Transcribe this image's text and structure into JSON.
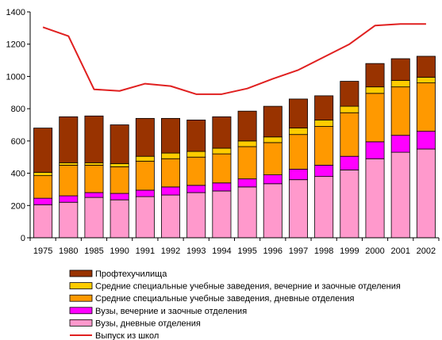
{
  "chart_data": {
    "type": "bar",
    "stacked": true,
    "categories": [
      "1975",
      "1980",
      "1985",
      "1990",
      "1991",
      "1992",
      "1993",
      "1994",
      "1995",
      "1996",
      "1997",
      "1998",
      "1999",
      "2000",
      "2001",
      "2002"
    ],
    "ylim": [
      0,
      1400
    ],
    "yticks": [
      0,
      200,
      400,
      600,
      800,
      1000,
      1200,
      1400
    ],
    "ytick_labels": [
      "0",
      "200",
      "400",
      "600",
      "800",
      "1000",
      "1200",
      "1400"
    ],
    "grid": false,
    "legend_position": "bottom",
    "series": [
      {
        "name": "Вузы, дневные отделения",
        "color": "#ff99cc",
        "values": [
          205,
          220,
          250,
          235,
          255,
          265,
          280,
          290,
          315,
          335,
          360,
          380,
          420,
          490,
          530,
          550
        ]
      },
      {
        "name": "Вузы, вечерние и заочные отделения",
        "color": "#ff00ff",
        "values": [
          40,
          40,
          30,
          40,
          40,
          50,
          45,
          50,
          50,
          55,
          65,
          70,
          85,
          105,
          105,
          110
        ]
      },
      {
        "name": "Средние специальные учебные заведения, дневные отделения",
        "color": "#ff9900",
        "values": [
          140,
          190,
          170,
          165,
          180,
          175,
          175,
          180,
          200,
          200,
          215,
          240,
          270,
          300,
          300,
          300
        ]
      },
      {
        "name": "Средние специальные учебные заведения, вечерние и заочные отделения",
        "color": "#ffcc00",
        "values": [
          20,
          15,
          15,
          20,
          30,
          35,
          35,
          35,
          35,
          35,
          40,
          40,
          40,
          40,
          40,
          35
        ]
      },
      {
        "name": "Профтехучилища",
        "color": "#993300",
        "values": [
          275,
          285,
          290,
          240,
          235,
          215,
          195,
          195,
          185,
          190,
          180,
          150,
          155,
          145,
          135,
          130
        ]
      }
    ],
    "line_series": {
      "name": "Выпуск из школ",
      "color": "#e02020",
      "values": [
        1305,
        1250,
        920,
        910,
        955,
        940,
        890,
        890,
        925,
        985,
        1040,
        1120,
        1200,
        1315,
        1325,
        1325
      ]
    },
    "legend_order": [
      "Профтехучилища",
      "Средние специальные учебные заведения, вечерние и заочные отделения",
      "Средние специальные учебные заведения, дневные отделения",
      "Вузы, вечерние и заочные отделения",
      "Вузы, дневные отделения",
      "Выпуск из школ"
    ]
  }
}
